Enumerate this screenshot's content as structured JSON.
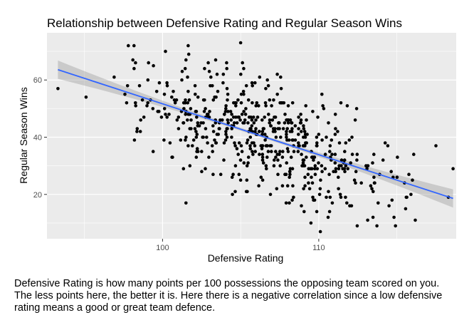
{
  "chart_data": {
    "type": "scatter",
    "title": "Relationship between Defensive Rating and Regular Season Wins",
    "xlabel": "Defensive Rating",
    "ylabel": "Regular Season Wins",
    "xlim": [
      92.6,
      118.8
    ],
    "ylim": [
      4.5,
      76.5
    ],
    "x_ticks": [
      100,
      110
    ],
    "x_tick_labels": [
      "100",
      "110"
    ],
    "y_ticks": [
      20,
      40,
      60
    ],
    "y_tick_labels": [
      "20",
      "40",
      "60"
    ],
    "grid": true,
    "legend": "none",
    "trend": {
      "method": "lm",
      "x": [
        93.3,
        118.6
      ],
      "y": [
        63.6,
        18.6
      ],
      "ci_halfwidth_ends": 3.2,
      "ci_halfwidth_center": 0.5,
      "line_color": "#3366FF",
      "band_color": "#999999"
    },
    "points": [
      [
        93.3,
        57
      ],
      [
        95.1,
        54
      ],
      [
        96.9,
        61
      ],
      [
        118.3,
        19
      ],
      [
        118.6,
        29
      ],
      [
        117.5,
        37
      ],
      [
        105.0,
        73
      ],
      [
        110.1,
        7
      ],
      [
        109.5,
        10
      ],
      [
        110.6,
        12
      ],
      [
        101.5,
        17
      ],
      [
        98.1,
        67
      ],
      [
        99.1,
        66
      ],
      [
        101.5,
        67
      ],
      [
        103.4,
        67
      ],
      [
        104.1,
        66
      ],
      [
        115.9,
        20
      ],
      [
        115.6,
        19
      ],
      [
        116.0,
        25
      ],
      [
        113.8,
        17
      ],
      [
        114.5,
        16
      ],
      [
        98.2,
        39
      ],
      [
        99.4,
        35
      ],
      [
        100.6,
        33
      ],
      [
        98.6,
        46
      ],
      [
        99.0,
        51
      ]
    ],
    "point_color": "#000000",
    "panel_color": "#EBEBEB"
  },
  "caption": {
    "lines": [
      "Defensive Rating is how many points per 100 possessions the opposing team scored on you.",
      "The less points here, the better it is. Here there is a negative correlation since a low defensive",
      "rating means a good or great team defence."
    ]
  }
}
